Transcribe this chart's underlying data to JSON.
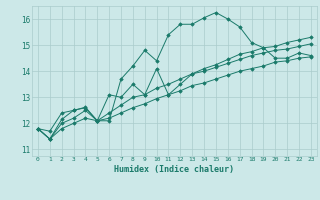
{
  "title": "",
  "xlabel": "Humidex (Indice chaleur)",
  "bg_color": "#cce8e8",
  "grid_color": "#aacccc",
  "line_color": "#1a7a6a",
  "xlim": [
    -0.5,
    23.5
  ],
  "ylim": [
    10.75,
    16.5
  ],
  "xticks": [
    0,
    1,
    2,
    3,
    4,
    5,
    6,
    7,
    8,
    9,
    10,
    11,
    12,
    13,
    14,
    15,
    16,
    17,
    18,
    19,
    20,
    21,
    22,
    23
  ],
  "yticks": [
    11,
    12,
    13,
    14,
    15,
    16
  ],
  "series": {
    "line1": [
      11.8,
      11.7,
      12.4,
      12.5,
      12.6,
      12.1,
      12.1,
      13.7,
      14.2,
      14.8,
      14.4,
      15.4,
      15.8,
      15.8,
      16.05,
      16.25,
      16.0,
      15.7,
      15.1,
      14.9,
      14.5,
      14.5,
      14.7,
      14.6
    ],
    "line2": [
      11.8,
      11.4,
      12.15,
      12.5,
      12.62,
      12.1,
      13.1,
      13.0,
      13.5,
      13.1,
      14.1,
      13.1,
      13.5,
      13.9,
      14.1,
      14.25,
      14.45,
      14.65,
      14.75,
      14.9,
      14.95,
      15.1,
      15.2,
      15.3
    ],
    "line3": [
      11.8,
      11.4,
      12.0,
      12.2,
      12.5,
      12.1,
      12.4,
      12.7,
      13.0,
      13.1,
      13.35,
      13.5,
      13.7,
      13.9,
      14.0,
      14.15,
      14.3,
      14.45,
      14.6,
      14.7,
      14.8,
      14.85,
      14.95,
      15.05
    ],
    "line4": [
      11.8,
      11.4,
      11.8,
      12.0,
      12.2,
      12.1,
      12.2,
      12.4,
      12.6,
      12.75,
      12.95,
      13.1,
      13.25,
      13.45,
      13.55,
      13.7,
      13.85,
      14.0,
      14.1,
      14.2,
      14.35,
      14.4,
      14.5,
      14.55
    ]
  }
}
